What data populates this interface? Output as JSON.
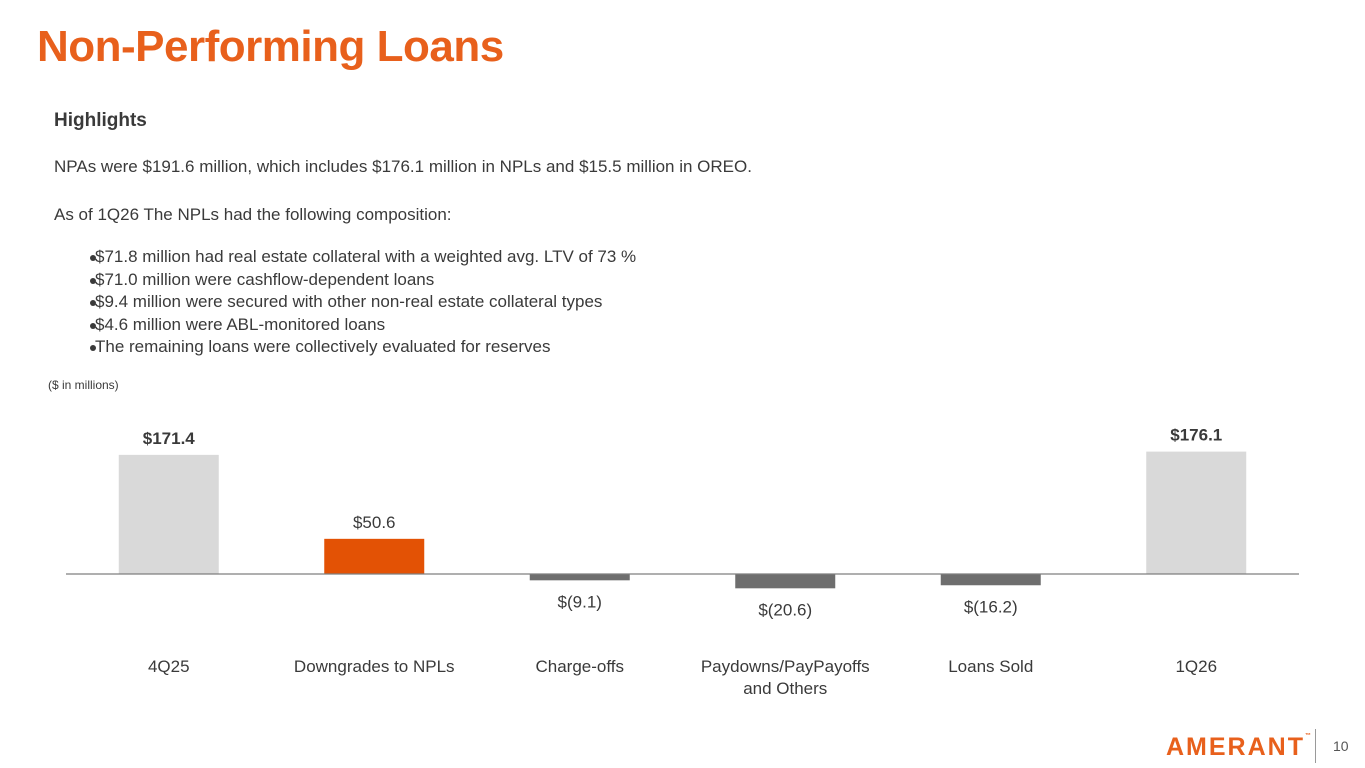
{
  "title": "Non-Performing Loans",
  "highlights": {
    "heading": "Highlights",
    "intro": "NPAs were $191.6 million, which includes $176.1 million in NPLs and $15.5 million in OREO.",
    "composition_lead": "As of 1Q26 The NPLs had the following composition:",
    "bullets": [
      "$71.8 million had real estate collateral with a weighted avg. LTV of 73 %",
      "$71.0 million were cashflow-dependent loans",
      "$9.4 million were secured with other non-real estate collateral types",
      "$4.6 million were ABL-monitored loans",
      "The remaining loans were collectively evaluated for reserves"
    ]
  },
  "chart_data": {
    "type": "bar",
    "subtype": "waterfall",
    "units_note": "($ in millions)",
    "categories": [
      "4Q25",
      "Downgrades to NPLs",
      "Charge-offs",
      "Paydowns/PayPayoffs and Others",
      "Loans Sold",
      "1Q26"
    ],
    "values": [
      171.4,
      50.6,
      -9.1,
      -20.6,
      -16.2,
      176.1
    ],
    "data_labels": [
      "$171.4",
      "$50.6",
      "$(9.1)",
      "$(20.6)",
      "$(16.2)",
      "$176.1"
    ],
    "bold_labels": [
      true,
      false,
      false,
      false,
      false,
      true
    ],
    "bar_colors": [
      "#D9D9D9",
      "#E35205",
      "#6E6E6E",
      "#6E6E6E",
      "#6E6E6E",
      "#D9D9D9"
    ],
    "grid": false,
    "legend": "none"
  },
  "footer": {
    "logo_text": "AMERANT",
    "logo_mark": "™",
    "page_number": "10"
  },
  "colors": {
    "accent": "#E8601C",
    "text": "#3A3A3A"
  }
}
